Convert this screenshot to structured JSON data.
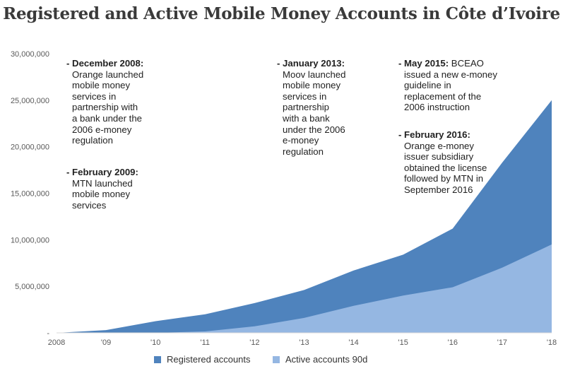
{
  "chart_data": {
    "type": "area",
    "title": "Registered and Active Mobile Money Accounts in Côte d’Ivoire",
    "x_labels": [
      "2008",
      "'09",
      "'10",
      "'11",
      "'12",
      "'13",
      "'14",
      "'15",
      "'16",
      "'17",
      "'18"
    ],
    "y_ticks": [
      "-",
      "5,000,000",
      "10,000,000",
      "15,000,000",
      "20,000,000",
      "25,000,000",
      "30,000,000"
    ],
    "ylim": [
      0,
      30000000
    ],
    "stacked": false,
    "series": [
      {
        "name": "Registered accounts",
        "color": "#4f83bd",
        "values": [
          0,
          300000,
          1250000,
          2000000,
          3200000,
          4600000,
          6700000,
          8400000,
          11200000,
          18300000,
          25000000
        ]
      },
      {
        "name": "Active accounts 90d",
        "color": "#95b7e2",
        "values": [
          0,
          0,
          0,
          150000,
          700000,
          1600000,
          2900000,
          4000000,
          4900000,
          7000000,
          9500000
        ]
      }
    ],
    "legend_position": "bottom",
    "grid": false
  },
  "annotations": [
    {
      "lines": [
        {
          "bold": "December 2008:",
          "rest": ""
        },
        {
          "text": "Orange launched"
        },
        {
          "text": "mobile money"
        },
        {
          "text": "services in"
        },
        {
          "text": "partnership with"
        },
        {
          "text": "a bank under the"
        },
        {
          "text": "2006 e-money"
        },
        {
          "text": "regulation"
        }
      ]
    },
    {
      "lines": [
        {
          "bold": "February 2009:",
          "rest": ""
        },
        {
          "text": "MTN launched"
        },
        {
          "text": "mobile money"
        },
        {
          "text": "services"
        }
      ]
    },
    {
      "lines": [
        {
          "bold": "January 2013:",
          "rest": ""
        },
        {
          "text": "Moov launched"
        },
        {
          "text": "mobile money"
        },
        {
          "text": "services in"
        },
        {
          "text": "partnership"
        },
        {
          "text": "with a bank"
        },
        {
          "text": "under the 2006"
        },
        {
          "text": "e-money"
        },
        {
          "text": "regulation"
        }
      ]
    },
    {
      "lines": [
        {
          "bold": "May 2015:",
          "rest": " BCEAO"
        },
        {
          "text": "issued a new e-money"
        },
        {
          "text": "guideline in"
        },
        {
          "text": "replacement of the"
        },
        {
          "text": "2006 instruction"
        }
      ]
    },
    {
      "lines": [
        {
          "bold": "February 2016:",
          "rest": ""
        },
        {
          "text": "Orange e-money"
        },
        {
          "text": "issuer subsidiary"
        },
        {
          "text": "obtained the license"
        },
        {
          "text": "followed by MTN in"
        },
        {
          "text": "September 2016"
        }
      ]
    }
  ]
}
